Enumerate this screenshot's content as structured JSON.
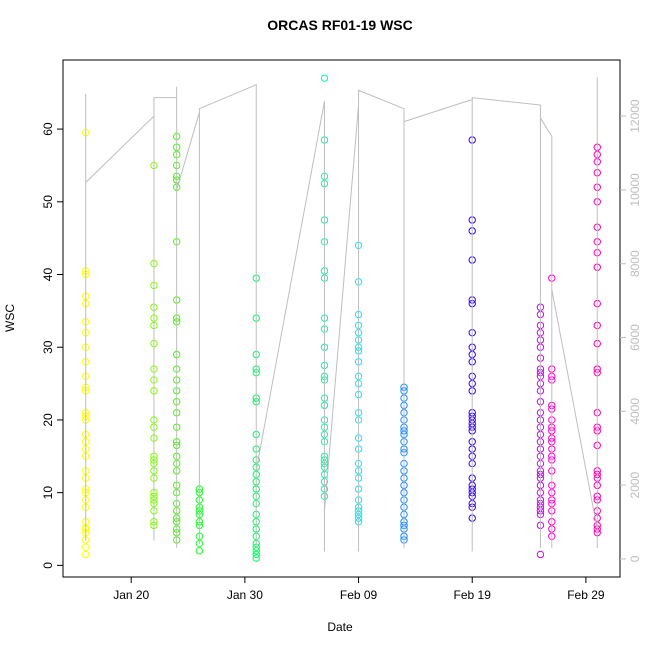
{
  "chart_data": {
    "type": "scatter",
    "title": "ORCAS RF01-19 WSC",
    "xlabel": "Date",
    "ylabel": "WSC",
    "xlim": [
      "Jan 14",
      "Mar 03"
    ],
    "xticks": [
      "Jan 20",
      "Jan 30",
      "Feb 09",
      "Feb 19",
      "Feb 29"
    ],
    "ylim": [
      -1.6,
      69.5
    ],
    "yticks": [
      0,
      10,
      20,
      30,
      40,
      50,
      60
    ],
    "y2lim": [
      -490,
      13520
    ],
    "y2ticks": [
      0,
      2000,
      4000,
      6000,
      8000,
      10000,
      12000
    ],
    "y2color": "#bebebe",
    "series": [
      {
        "color": "#ffff00",
        "x": [
          "Jan 16",
          "Jan 16",
          "Jan 16",
          "Jan 16",
          "Jan 16",
          "Jan 16",
          "Jan 16",
          "Jan 16",
          "Jan 16",
          "Jan 16",
          "Jan 16",
          "Jan 16",
          "Jan 16",
          "Jan 16",
          "Jan 16",
          "Jan 16",
          "Jan 16",
          "Jan 16",
          "Jan 16",
          "Jan 16",
          "Jan 16",
          "Jan 16",
          "Jan 16",
          "Jan 16",
          "Jan 16",
          "Jan 16",
          "Jan 16",
          "Jan 16",
          "Jan 16",
          "Jan 16",
          "Jan 16",
          "Jan 16"
        ],
        "values": [
          59.5,
          40.5,
          40,
          37,
          36,
          33.5,
          32,
          30,
          28,
          26,
          24.5,
          24,
          21,
          20.5,
          20,
          18,
          17,
          16,
          15,
          13,
          12,
          10.5,
          10,
          9,
          8,
          6,
          5.2,
          5,
          4.5,
          3.5,
          2.5,
          1.5
        ]
      },
      {
        "color": "#80ff00",
        "x": [
          "Jan 22",
          "Jan 22",
          "Jan 22",
          "Jan 22",
          "Jan 22",
          "Jan 22",
          "Jan 22",
          "Jan 22",
          "Jan 22",
          "Jan 22",
          "Jan 22",
          "Jan 22",
          "Jan 22",
          "Jan 22",
          "Jan 22",
          "Jan 22",
          "Jan 22",
          "Jan 22",
          "Jan 22",
          "Jan 22",
          "Jan 22",
          "Jan 22",
          "Jan 22",
          "Jan 22",
          "Jan 22"
        ],
        "values": [
          55,
          41.5,
          38.5,
          35.5,
          34,
          33,
          30.5,
          27,
          25.5,
          24,
          20,
          19,
          17.5,
          15,
          14.5,
          14,
          13,
          12,
          10,
          9.5,
          9,
          8.5,
          7.5,
          6,
          5.5
        ]
      },
      {
        "color": "#40ff00",
        "x": [
          "Jan 24",
          "Jan 24",
          "Jan 24",
          "Jan 24",
          "Jan 24",
          "Jan 24",
          "Jan 24",
          "Jan 24",
          "Jan 24",
          "Jan 24",
          "Jan 24",
          "Jan 24",
          "Jan 24",
          "Jan 24",
          "Jan 24",
          "Jan 24",
          "Jan 24",
          "Jan 24",
          "Jan 24",
          "Jan 24",
          "Jan 24",
          "Jan 24",
          "Jan 24",
          "Jan 24",
          "Jan 24",
          "Jan 24",
          "Jan 24",
          "Jan 24",
          "Jan 24",
          "Jan 24",
          "Jan 24",
          "Jan 24"
        ],
        "values": [
          59,
          57.5,
          56.5,
          55,
          53.5,
          53,
          52,
          44.5,
          36.5,
          34,
          33.5,
          29,
          27,
          25.5,
          24,
          22.5,
          21,
          19,
          17,
          16.5,
          15,
          14,
          13,
          11,
          10,
          8.5,
          7.5,
          6.5,
          6,
          5,
          4.5,
          3.5
        ]
      },
      {
        "color": "#20ff30",
        "x": [
          "Jan 26",
          "Jan 26",
          "Jan 26",
          "Jan 26",
          "Jan 26",
          "Jan 26",
          "Jan 26",
          "Jan 26",
          "Jan 26",
          "Jan 26",
          "Jan 26"
        ],
        "values": [
          10.5,
          10,
          9,
          8,
          7.5,
          7,
          6,
          5.5,
          4,
          3,
          2
        ]
      },
      {
        "color": "#00ff60",
        "x": [
          "Jan 31",
          "Jan 31",
          "Jan 31",
          "Jan 31",
          "Jan 31",
          "Jan 31",
          "Jan 31",
          "Jan 31",
          "Jan 31",
          "Jan 31",
          "Jan 31",
          "Jan 31",
          "Jan 31",
          "Jan 31",
          "Jan 31",
          "Jan 31",
          "Jan 31",
          "Jan 31",
          "Jan 31",
          "Jan 31",
          "Jan 31",
          "Jan 31",
          "Jan 31",
          "Jan 31",
          "Jan 31"
        ],
        "values": [
          39.5,
          34,
          29,
          27,
          26.5,
          23,
          22.5,
          18,
          16,
          14.5,
          13.5,
          12.5,
          11.5,
          10.5,
          9.5,
          8.5,
          7,
          6,
          5,
          4,
          3,
          2.5,
          2,
          1.5,
          1
        ]
      },
      {
        "color": "#00ffa0",
        "x": [
          "Feb 06",
          "Feb 06",
          "Feb 06",
          "Feb 06",
          "Feb 06",
          "Feb 06",
          "Feb 06",
          "Feb 06",
          "Feb 06",
          "Feb 06",
          "Feb 06",
          "Feb 06",
          "Feb 06",
          "Feb 06",
          "Feb 06",
          "Feb 06",
          "Feb 06",
          "Feb 06",
          "Feb 06",
          "Feb 06",
          "Feb 06",
          "Feb 06",
          "Feb 06",
          "Feb 06",
          "Feb 06",
          "Feb 06",
          "Feb 06",
          "Feb 06"
        ],
        "values": [
          67,
          58.5,
          53.5,
          52.5,
          47.5,
          44.5,
          40.5,
          39.5,
          34,
          32.5,
          30,
          27.5,
          26,
          25.5,
          23,
          22,
          20,
          19,
          18,
          17,
          15,
          14.5,
          14,
          13.5,
          12.5,
          11.5,
          10.5,
          9.5
        ]
      },
      {
        "color": "#00f0ff",
        "x": [
          "Feb 09",
          "Feb 09",
          "Feb 09",
          "Feb 09",
          "Feb 09",
          "Feb 09",
          "Feb 09",
          "Feb 09",
          "Feb 09",
          "Feb 09",
          "Feb 09",
          "Feb 09",
          "Feb 09",
          "Feb 09",
          "Feb 09",
          "Feb 09",
          "Feb 09",
          "Feb 09",
          "Feb 09",
          "Feb 09",
          "Feb 09",
          "Feb 09",
          "Feb 09",
          "Feb 09",
          "Feb 09",
          "Feb 09"
        ],
        "values": [
          44,
          39,
          34.5,
          33,
          32,
          31,
          30,
          29.5,
          28,
          26,
          25,
          23.5,
          21,
          20,
          17.5,
          16,
          14,
          13,
          12,
          10.5,
          9,
          8,
          7.5,
          7,
          6.5,
          6
        ]
      },
      {
        "color": "#1a8cff",
        "x": [
          "Feb 13",
          "Feb 13",
          "Feb 13",
          "Feb 13",
          "Feb 13",
          "Feb 13",
          "Feb 13",
          "Feb 13",
          "Feb 13",
          "Feb 13",
          "Feb 13",
          "Feb 13",
          "Feb 13",
          "Feb 13",
          "Feb 13",
          "Feb 13",
          "Feb 13",
          "Feb 13",
          "Feb 13",
          "Feb 13",
          "Feb 13",
          "Feb 13",
          "Feb 13",
          "Feb 13",
          "Feb 13"
        ],
        "values": [
          24.5,
          24,
          23,
          22,
          21,
          20,
          19,
          18.5,
          18,
          17,
          16,
          15.5,
          14,
          13,
          12,
          11,
          10,
          9,
          8,
          7,
          6,
          5.5,
          5,
          4,
          3.5
        ]
      },
      {
        "color": "#3300ff",
        "x": [
          "Feb 19",
          "Feb 19",
          "Feb 19",
          "Feb 19",
          "Feb 19",
          "Feb 19",
          "Feb 19",
          "Feb 19",
          "Feb 19",
          "Feb 19",
          "Feb 19",
          "Feb 19",
          "Feb 19",
          "Feb 19",
          "Feb 19",
          "Feb 19",
          "Feb 19",
          "Feb 19",
          "Feb 19",
          "Feb 19",
          "Feb 19",
          "Feb 19",
          "Feb 19",
          "Feb 19",
          "Feb 19",
          "Feb 19",
          "Feb 19",
          "Feb 19",
          "Feb 19",
          "Feb 19",
          "Feb 19"
        ],
        "values": [
          58.5,
          47.5,
          46,
          42,
          36.5,
          36,
          32,
          30,
          29,
          28,
          26,
          25,
          24,
          21,
          20.5,
          20,
          19.5,
          19,
          18.5,
          17,
          16,
          15,
          14,
          12,
          11,
          10.5,
          10,
          9.5,
          8.5,
          8,
          6.5
        ]
      },
      {
        "color": "#d000ff",
        "x": [
          "Feb 25",
          "Feb 25",
          "Feb 25",
          "Feb 25",
          "Feb 25",
          "Feb 25",
          "Feb 25",
          "Feb 25",
          "Feb 25",
          "Feb 25",
          "Feb 25",
          "Feb 25",
          "Feb 25",
          "Feb 25",
          "Feb 25",
          "Feb 25",
          "Feb 25",
          "Feb 25",
          "Feb 25",
          "Feb 25",
          "Feb 25",
          "Feb 25",
          "Feb 25",
          "Feb 25",
          "Feb 25",
          "Feb 25",
          "Feb 25",
          "Feb 25",
          "Feb 25",
          "Feb 25",
          "Feb 25",
          "Feb 25",
          "Feb 25"
        ],
        "values": [
          35.5,
          34.5,
          33,
          32,
          31,
          30,
          28.5,
          27,
          26.5,
          26,
          25,
          24,
          22.5,
          21,
          20,
          19,
          18,
          17,
          16,
          15,
          14,
          13,
          12.5,
          12,
          11,
          10,
          9,
          8.5,
          8,
          7.5,
          7,
          5.5,
          1.5
        ]
      },
      {
        "color": "#ff00d0",
        "x": [
          "Feb 26",
          "Feb 26",
          "Feb 26",
          "Feb 26",
          "Feb 26",
          "Feb 26",
          "Feb 26",
          "Feb 26",
          "Feb 26",
          "Feb 26",
          "Feb 26",
          "Feb 26",
          "Feb 26",
          "Feb 26",
          "Feb 26",
          "Feb 26",
          "Feb 26",
          "Feb 26",
          "Feb 26",
          "Feb 26",
          "Feb 26",
          "Feb 26",
          "Feb 26"
        ],
        "values": [
          39.5,
          27,
          26,
          25.5,
          22,
          21.5,
          20,
          19,
          18.5,
          17.5,
          17,
          16,
          15,
          14.5,
          13,
          11,
          10,
          9,
          8.5,
          7.5,
          6,
          5,
          4
        ]
      },
      {
        "color": "#ff00b0",
        "x": [
          "Mar 01",
          "Mar 01",
          "Mar 01",
          "Mar 01",
          "Mar 01",
          "Mar 01",
          "Mar 01",
          "Mar 01",
          "Mar 01",
          "Mar 01",
          "Mar 01",
          "Mar 01",
          "Mar 01",
          "Mar 01",
          "Mar 01",
          "Mar 01",
          "Mar 01",
          "Mar 01",
          "Mar 01",
          "Mar 01",
          "Mar 01",
          "Mar 01",
          "Mar 01",
          "Mar 01",
          "Mar 01",
          "Mar 01",
          "Mar 01",
          "Mar 01",
          "Mar 01",
          "Mar 01"
        ],
        "values": [
          57.5,
          56.5,
          55.5,
          54,
          52,
          50,
          46.5,
          44.5,
          43,
          41,
          36,
          33,
          30.5,
          27,
          26.5,
          21,
          19,
          18.5,
          16.5,
          13,
          12.5,
          12,
          11,
          9.5,
          9,
          7.5,
          6.5,
          5.5,
          5,
          4.5
        ]
      },
      {
        "type": "line",
        "axis": "y2",
        "color": "#bebebe",
        "x": [
          "Jan 16",
          "Jan 16",
          "Jan 16",
          "Jan 16",
          "Jan 16",
          "Jan 16",
          "Jan 22",
          "Jan 22",
          "Jan 22",
          "Jan 22",
          "Jan 22",
          "Jan 22",
          "Jan 24",
          "Jan 24",
          "Jan 24",
          "Jan 24",
          "Jan 26",
          "Jan 26",
          "Jan 26",
          "Jan 31",
          "Jan 31",
          "Jan 31",
          "Jan 31",
          "Jan 31",
          "Jan 31",
          "Feb 06",
          "Feb 06",
          "Feb 06",
          "Feb 06",
          "Feb 09",
          "Feb 09",
          "Feb 09",
          "Feb 13",
          "Feb 13",
          "Feb 13",
          "Feb 13",
          "Feb 19",
          "Feb 19",
          "Feb 19",
          "Feb 19",
          "Feb 19",
          "Feb 25",
          "Feb 25",
          "Feb 25",
          "Feb 25",
          "Feb 25",
          "Feb 26",
          "Feb 26",
          "Feb 26",
          "Feb 26",
          "Mar 01",
          "Mar 01",
          "Mar 01"
        ],
        "values": [
          500,
          12600,
          1000,
          12500,
          2000,
          10200,
          12000,
          500,
          12400,
          1200,
          9000,
          12500,
          12500,
          300,
          12800,
          10000,
          12100,
          400,
          12200,
          12850,
          300,
          12700,
          1500,
          9000,
          2400,
          12400,
          200,
          12000,
          1300,
          12300,
          200,
          12700,
          12200,
          300,
          10000,
          11850,
          12450,
          200,
          12300,
          500,
          12500,
          12300,
          300,
          12000,
          800,
          11950,
          11450,
          300,
          10300,
          7300,
          800,
          300,
          13050
        ]
      }
    ]
  }
}
